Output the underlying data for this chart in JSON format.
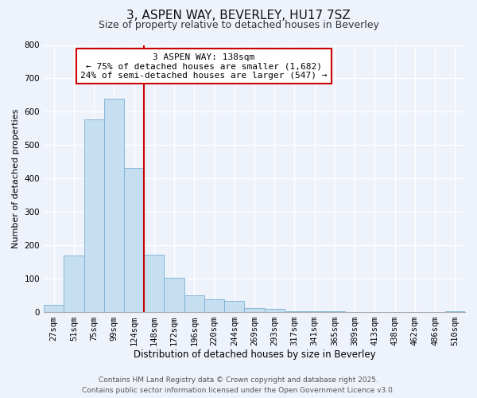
{
  "title": "3, ASPEN WAY, BEVERLEY, HU17 7SZ",
  "subtitle": "Size of property relative to detached houses in Beverley",
  "xlabel": "Distribution of detached houses by size in Beverley",
  "ylabel": "Number of detached properties",
  "bar_labels": [
    "27sqm",
    "51sqm",
    "75sqm",
    "99sqm",
    "124sqm",
    "148sqm",
    "172sqm",
    "196sqm",
    "220sqm",
    "244sqm",
    "269sqm",
    "293sqm",
    "317sqm",
    "341sqm",
    "365sqm",
    "389sqm",
    "413sqm",
    "438sqm",
    "462sqm",
    "486sqm",
    "510sqm"
  ],
  "bar_values": [
    20,
    168,
    577,
    638,
    430,
    172,
    102,
    50,
    38,
    32,
    12,
    8,
    2,
    1,
    1,
    0,
    0,
    0,
    0,
    0,
    2
  ],
  "bar_color": "#c5dff0",
  "bar_edge_color": "#7bafd4",
  "vline_x_index": 4.5,
  "vline_color": "#cc0000",
  "annotation_title": "3 ASPEN WAY: 138sqm",
  "annotation_line1": "← 75% of detached houses are smaller (1,682)",
  "annotation_line2": "24% of semi-detached houses are larger (547) →",
  "annotation_box_facecolor": "#ffffff",
  "annotation_box_edgecolor": "#cc0000",
  "ylim": [
    0,
    800
  ],
  "yticks": [
    0,
    100,
    200,
    300,
    400,
    500,
    600,
    700,
    800
  ],
  "footer_line1": "Contains HM Land Registry data © Crown copyright and database right 2025.",
  "footer_line2": "Contains public sector information licensed under the Open Government Licence v3.0.",
  "bg_color": "#eef2fb",
  "grid_color": "#ffffff",
  "title_fontsize": 11,
  "subtitle_fontsize": 9,
  "xlabel_fontsize": 8.5,
  "ylabel_fontsize": 8,
  "tick_fontsize": 7.5,
  "annotation_fontsize": 8,
  "footer_fontsize": 6.5
}
